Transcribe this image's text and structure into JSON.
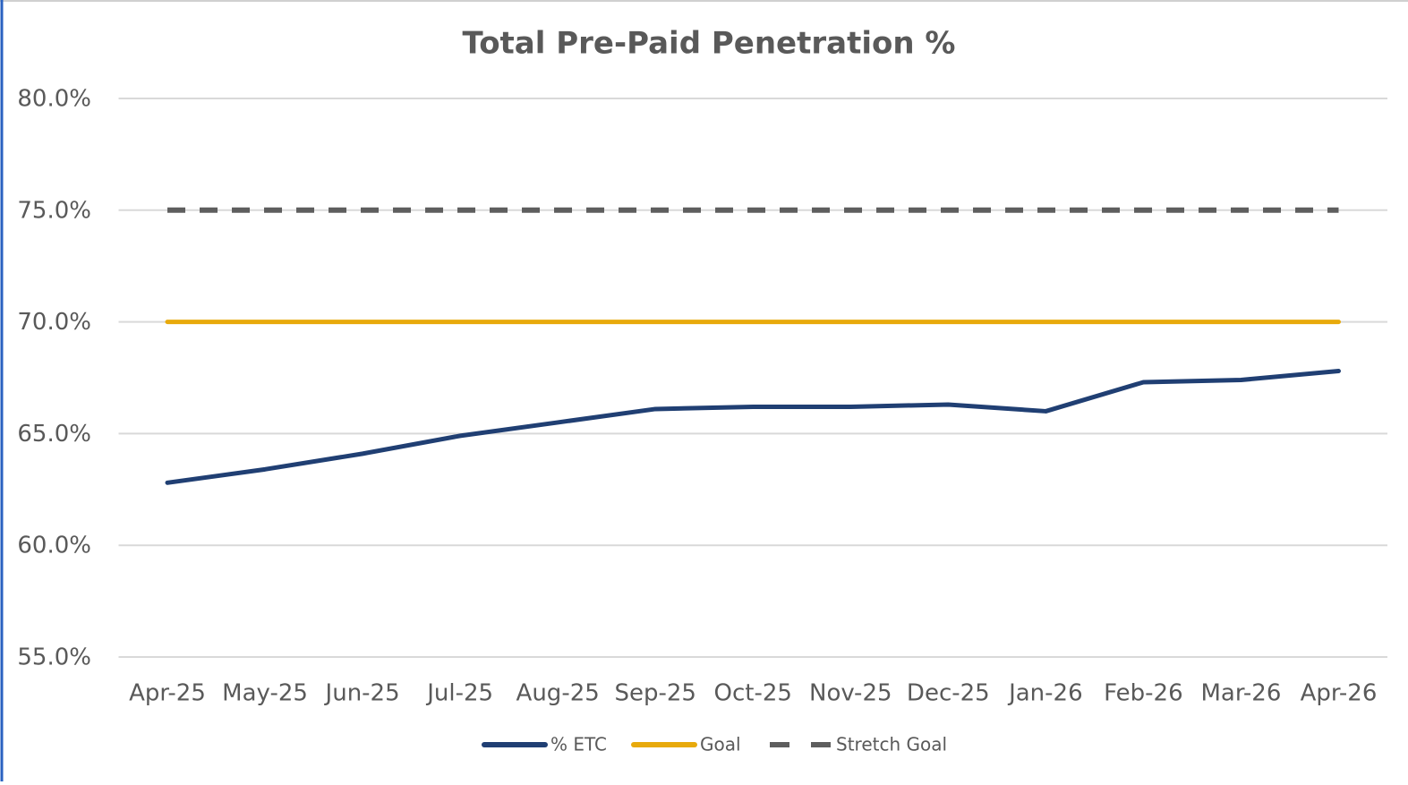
{
  "chart_data": {
    "type": "line",
    "title": "Total Pre-Paid Penetration %",
    "categories": [
      "Apr-25",
      "May-25",
      "Jun-25",
      "Jul-25",
      "Aug-25",
      "Sep-25",
      "Oct-25",
      "Nov-25",
      "Dec-25",
      "Jan-26",
      "Feb-26",
      "Mar-26",
      "Apr-26"
    ],
    "series": [
      {
        "name": "% ETC",
        "color": "#203f73",
        "values": [
          62.8,
          63.4,
          64.1,
          64.9,
          65.5,
          66.1,
          66.2,
          66.2,
          66.3,
          66.0,
          67.3,
          67.4,
          67.8
        ]
      },
      {
        "name": "Goal",
        "color": "#e8aa0c",
        "values": [
          70,
          70,
          70,
          70,
          70,
          70,
          70,
          70,
          70,
          70,
          70,
          70,
          70
        ]
      },
      {
        "name": "Stretch Goal",
        "color": "#5e5e5e",
        "dashed": true,
        "values": [
          75,
          75,
          75,
          75,
          75,
          75,
          75,
          75,
          75,
          75,
          75,
          75,
          75
        ]
      }
    ],
    "ylim": [
      55,
      80
    ],
    "yticks": [
      {
        "value": 55,
        "label": "55.0%"
      },
      {
        "value": 60,
        "label": "60.0%"
      },
      {
        "value": 65,
        "label": "65.0%"
      },
      {
        "value": 70,
        "label": "70.0%"
      },
      {
        "value": 75,
        "label": "75.0%"
      },
      {
        "value": 80,
        "label": "80.0%"
      }
    ],
    "grid": true,
    "legend": "bottom"
  }
}
